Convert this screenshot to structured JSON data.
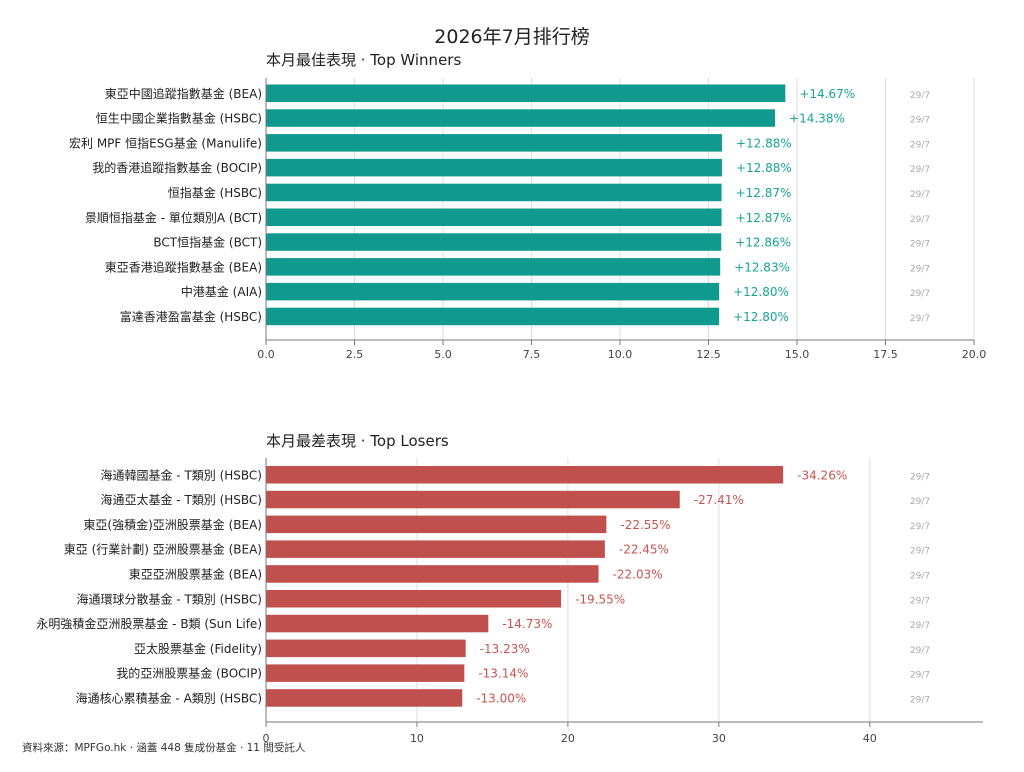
{
  "page": {
    "title": "2026年7月排行榜",
    "footer": "資料來源：MPFGo.hk · 涵蓋 448 隻成份基金 · 11 間受託人"
  },
  "chart_data": [
    {
      "type": "bar",
      "orientation": "horizontal",
      "title": "本月最佳表現 · Top Winners",
      "categories": [
        "東亞中國追蹤指數基金 (BEA)",
        "恒生中國企業指數基金 (HSBC)",
        "宏利 MPF 恒指ESG基金 (Manulife)",
        "我的香港追蹤指數基金 (BOCIP)",
        "恒指基金 (HSBC)",
        "景順恒指基金 - 單位類別A (BCT)",
        "BCT恒指基金 (BCT)",
        "東亞香港追蹤指數基金 (BEA)",
        "中港基金 (AIA)",
        "富達香港盈富基金 (HSBC)"
      ],
      "values": [
        14.67,
        14.38,
        12.88,
        12.88,
        12.87,
        12.87,
        12.86,
        12.83,
        12.8,
        12.8
      ],
      "value_labels": [
        "+14.67%",
        "+14.38%",
        "+12.88%",
        "+12.88%",
        "+12.87%",
        "+12.87%",
        "+12.86%",
        "+12.83%",
        "+12.80%",
        "+12.80%"
      ],
      "dates": [
        "29/7",
        "29/7",
        "29/7",
        "29/7",
        "29/7",
        "29/7",
        "29/7",
        "29/7",
        "29/7",
        "29/7"
      ],
      "xlim": [
        0,
        20
      ],
      "xticks": [
        0,
        2.5,
        5,
        7.5,
        10,
        12.5,
        15,
        17.5,
        20
      ],
      "xtick_labels": [
        "0.0",
        "2.5",
        "5.0",
        "7.5",
        "10.0",
        "12.5",
        "15.0",
        "17.5",
        "20.0"
      ],
      "grid": true,
      "bar_color": "#0f9a8d",
      "label_color": "#17a497"
    },
    {
      "type": "bar",
      "orientation": "horizontal",
      "title": "本月最差表現 · Top Losers",
      "categories": [
        "海通韓國基金 - T類別 (HSBC)",
        "海通亞太基金 - T類別 (HSBC)",
        "東亞(強積金)亞洲股票基金 (BEA)",
        "東亞 (行業計劃) 亞洲股票基金 (BEA)",
        "東亞亞洲股票基金 (BEA)",
        "海通環球分散基金 - T類別 (HSBC)",
        "永明強積金亞洲股票基金 - B類 (Sun Life)",
        "亞太股票基金 (Fidelity)",
        "我的亞洲股票基金 (BOCIP)",
        "海通核心累積基金 - A類別 (HSBC)"
      ],
      "values": [
        -34.26,
        -27.41,
        -22.55,
        -22.45,
        -22.03,
        -19.55,
        -14.73,
        -13.23,
        -13.14,
        -13.0
      ],
      "value_labels": [
        "-34.26%",
        "-27.41%",
        "-22.55%",
        "-22.45%",
        "-22.03%",
        "-19.55%",
        "-14.73%",
        "-13.23%",
        "-13.14%",
        "-13.00%"
      ],
      "dates": [
        "29/7",
        "29/7",
        "29/7",
        "29/7",
        "29/7",
        "29/7",
        "29/7",
        "29/7",
        "29/7",
        "29/7"
      ],
      "xlim": [
        0,
        47.5
      ],
      "xticks": [
        0,
        10,
        20,
        30,
        40
      ],
      "xtick_labels": [
        "0",
        "10",
        "20",
        "30",
        "40"
      ],
      "grid": true,
      "bar_color": "#c0504d",
      "label_color": "#c9534f"
    }
  ]
}
